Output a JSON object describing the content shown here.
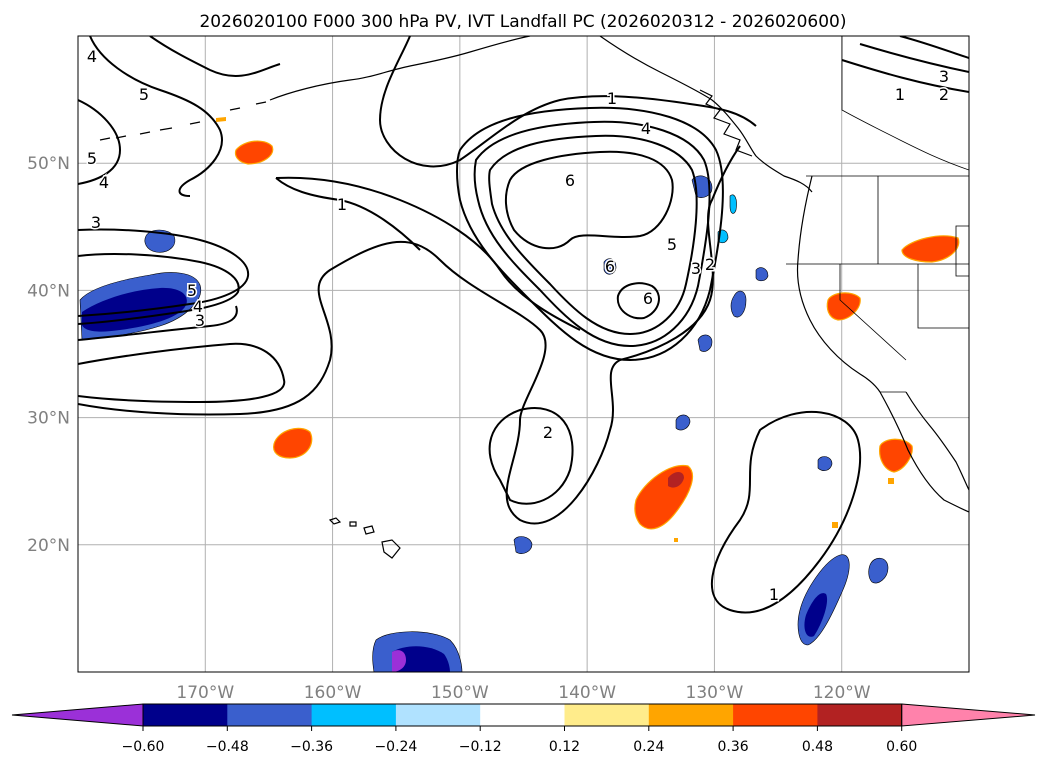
{
  "title": "2026020100 F000 300 hPa PV, IVT Landfall PC (2026020312 - 2026020600)",
  "map": {
    "lon_ticks": [
      "170°W",
      "160°W",
      "150°W",
      "140°W",
      "130°W",
      "120°W"
    ],
    "lat_ticks": [
      "50°N",
      "40°N",
      "30°N",
      "20°N"
    ],
    "extent": {
      "lon_min": -180,
      "lon_max": -110,
      "lat_min": 10,
      "lat_max": 60
    },
    "grid": true,
    "tick_color": "#808080"
  },
  "contour_labels": [
    {
      "text": "4"
    },
    {
      "text": "5"
    },
    {
      "text": "5"
    },
    {
      "text": "4"
    },
    {
      "text": "3"
    },
    {
      "text": "1"
    },
    {
      "text": "1"
    },
    {
      "text": "4"
    },
    {
      "text": "6"
    },
    {
      "text": "5"
    },
    {
      "text": "3"
    },
    {
      "text": "2"
    },
    {
      "text": "6"
    },
    {
      "text": "6"
    },
    {
      "text": "2"
    },
    {
      "text": "1"
    },
    {
      "text": "3"
    },
    {
      "text": "2"
    },
    {
      "text": "1"
    },
    {
      "text": "5"
    },
    {
      "text": "4"
    },
    {
      "text": "3"
    }
  ],
  "colorbar": {
    "ticks": [
      "−0.60",
      "−0.48",
      "−0.36",
      "−0.24",
      "−0.12",
      "0.12",
      "0.24",
      "0.36",
      "0.48",
      "0.60"
    ],
    "colors": [
      "#9b30d8",
      "#00008b",
      "#3a5fcd",
      "#00bfff",
      "#b0e2ff",
      "#ffffff",
      "#ffec8b",
      "#ffa500",
      "#ff4500",
      "#b22222",
      "#ff82ab"
    ]
  }
}
